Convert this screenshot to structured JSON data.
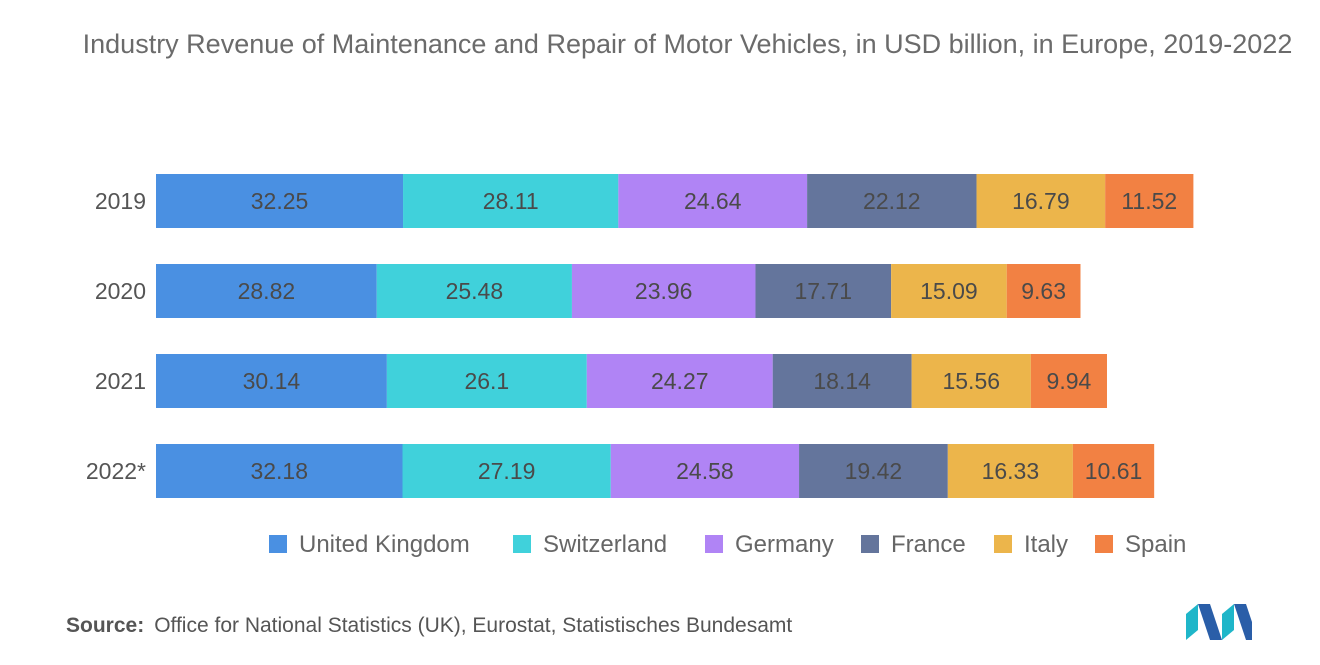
{
  "title": "Industry Revenue of Maintenance and Repair of Motor Vehicles, in USD billion, in Europe, 2019-2022",
  "source_label": "Source:",
  "source_text": "Office for National Statistics (UK), Eurostat, Statistisches Bundesamt",
  "logo": "mordor-intelligence-logo",
  "chart_data": {
    "type": "bar",
    "orientation": "horizontal",
    "stacked": true,
    "title": "Industry Revenue of Maintenance and Repair of Motor Vehicles, in USD billion, in Europe, 2019-2022",
    "categories": [
      "2019",
      "2020",
      "2021",
      "2022*"
    ],
    "series": [
      {
        "name": "United Kingdom",
        "color": "#4a90e2",
        "values": [
          32.25,
          28.82,
          30.14,
          32.18
        ]
      },
      {
        "name": "Switzerland",
        "color": "#40d1db",
        "values": [
          28.11,
          25.48,
          26.1,
          27.19
        ]
      },
      {
        "name": "Germany",
        "color": "#b084f5",
        "values": [
          24.64,
          23.96,
          24.27,
          24.58
        ]
      },
      {
        "name": "France",
        "color": "#64759c",
        "values": [
          22.12,
          17.71,
          18.14,
          19.42
        ]
      },
      {
        "name": "Italy",
        "color": "#ecb54b",
        "values": [
          16.79,
          15.09,
          15.56,
          16.33
        ]
      },
      {
        "name": "Spain",
        "color": "#f28143",
        "values": [
          11.52,
          9.63,
          9.94,
          10.61
        ]
      }
    ],
    "legend_position": "bottom",
    "grid": false,
    "data_labels": true
  }
}
